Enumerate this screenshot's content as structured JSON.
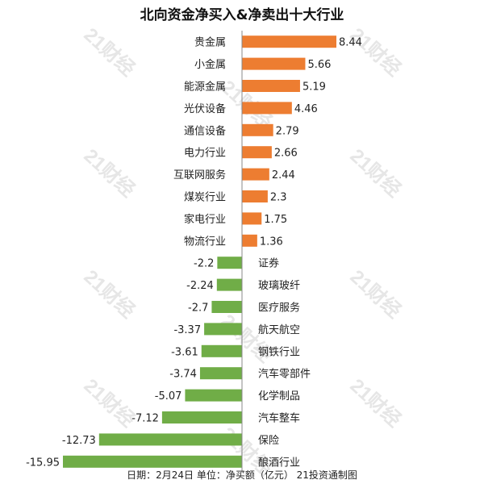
{
  "title": "北向资金净买入&净卖出十大行业",
  "footer": "日期：2月24日 单位：净买额（亿元） 21投资通制图",
  "watermark": "21财经",
  "colors": {
    "positive": "#ED7D31",
    "negative": "#70AD47",
    "axis": "#888888"
  },
  "chart_data": {
    "type": "bar",
    "orientation": "horizontal",
    "title": "北向资金净买入&净卖出十大行业",
    "categories": [
      "贵金属",
      "小金属",
      "能源金属",
      "光伏设备",
      "通信设备",
      "电力行业",
      "互联网服务",
      "煤炭行业",
      "家电行业",
      "物流行业",
      "证券",
      "玻璃玻纤",
      "医疗服务",
      "航天航空",
      "钢铁行业",
      "汽车零部件",
      "化学制品",
      "汽车整车",
      "保险",
      "酿酒行业"
    ],
    "values": [
      8.44,
      5.66,
      5.19,
      4.46,
      2.79,
      2.66,
      2.44,
      2.3,
      1.75,
      1.36,
      -2.2,
      -2.24,
      -2.7,
      -3.37,
      -3.61,
      -3.74,
      -5.07,
      -7.12,
      -12.73,
      -15.95
    ],
    "value_labels": [
      "8.44",
      "5.66",
      "5.19",
      "4.46",
      "2.79",
      "2.66",
      "2.44",
      "2.3",
      "1.75",
      "1.36",
      "-2.2",
      "-2.24",
      "-2.7",
      "-3.37",
      "-3.61",
      "-3.74",
      "-5.07",
      "-7.12",
      "-12.73",
      "-15.95"
    ],
    "xlim": [
      -15.95,
      8.44
    ],
    "unit": "净买额（亿元）",
    "grid": false,
    "legend": "none"
  }
}
